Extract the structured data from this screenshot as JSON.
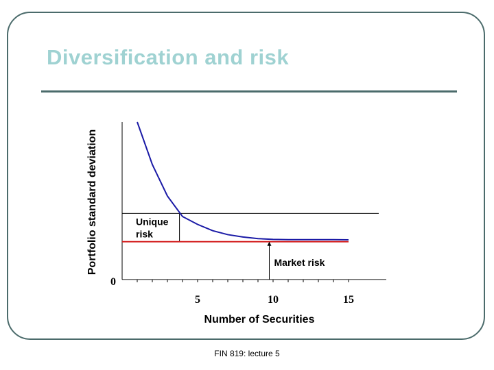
{
  "slide": {
    "title": "Diversification and risk",
    "footer": "FIN 819: lecture 5"
  },
  "colors": {
    "title": "#9fd2d2",
    "frame": "#4b6b6b",
    "curve": "#1a1aa6",
    "market_line": "#d42020"
  },
  "chart_data": {
    "type": "line",
    "xlabel": "Number of Securities",
    "ylabel": "Portfolio standard deviation",
    "x_ticks": [
      5,
      10,
      15
    ],
    "y_ticks": [
      0
    ],
    "xlim": [
      0,
      17.5
    ],
    "ylim": [
      0,
      100
    ],
    "grid": false,
    "series": [
      {
        "x": [
          1,
          2,
          3,
          4,
          5,
          6,
          7,
          8,
          9,
          10,
          11,
          12,
          13,
          14,
          15
        ],
        "y": [
          100,
          73,
          53,
          40,
          35,
          31,
          28.5,
          27,
          26,
          25.5,
          25.3,
          25.3,
          25.3,
          25.3,
          25.2
        ]
      }
    ],
    "market_risk_level": 24,
    "annotation_level": 42,
    "annotations": [
      {
        "text": "Unique\nrisk",
        "label_id": "unique"
      },
      {
        "text": "Market risk",
        "label_id": "market"
      }
    ],
    "labels": {
      "unique_line1": "Unique",
      "unique_line2": "risk",
      "market": "Market risk"
    }
  }
}
